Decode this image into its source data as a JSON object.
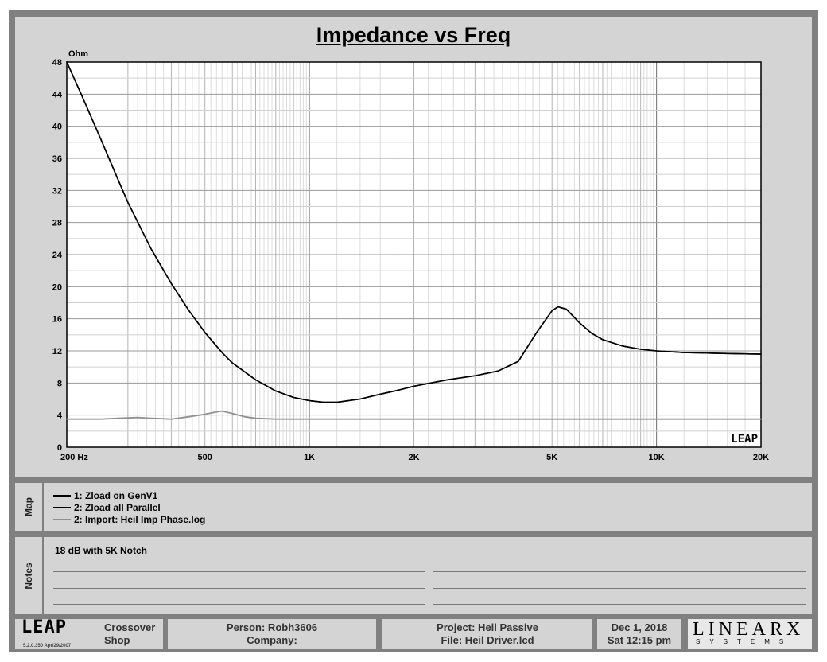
{
  "chart_data": {
    "type": "line",
    "title": "Impedance vs Freq",
    "ylabel": "Ohm",
    "xlabel": "",
    "x_scale": "log",
    "xlim": [
      200,
      20000
    ],
    "ylim": [
      0,
      48
    ],
    "yticks": [
      0,
      4,
      8,
      12,
      16,
      20,
      24,
      28,
      32,
      36,
      40,
      44,
      48
    ],
    "xtick_labels": [
      {
        "value": 200,
        "label": "200  Hz"
      },
      {
        "value": 500,
        "label": "500"
      },
      {
        "value": 1000,
        "label": "1K"
      },
      {
        "value": 2000,
        "label": "2K"
      },
      {
        "value": 5000,
        "label": "5K"
      },
      {
        "value": 10000,
        "label": "10K"
      },
      {
        "value": 20000,
        "label": "20K"
      }
    ],
    "grid": true,
    "watermark": "LEAP",
    "series": [
      {
        "name": "1: Zload on GenV1",
        "color": "#000000",
        "points": [
          [
            200,
            48.0
          ],
          [
            220,
            44.0
          ],
          [
            250,
            38.5
          ],
          [
            280,
            33.5
          ],
          [
            300,
            30.5
          ],
          [
            350,
            24.7
          ],
          [
            400,
            20.4
          ],
          [
            450,
            17.0
          ],
          [
            500,
            14.3
          ],
          [
            560,
            11.8
          ],
          [
            600,
            10.5
          ],
          [
            700,
            8.4
          ],
          [
            800,
            7.0
          ],
          [
            900,
            6.2
          ],
          [
            1000,
            5.8
          ],
          [
            1100,
            5.6
          ],
          [
            1200,
            5.6
          ],
          [
            1400,
            6.0
          ],
          [
            1600,
            6.6
          ],
          [
            1800,
            7.1
          ],
          [
            2000,
            7.6
          ],
          [
            2500,
            8.4
          ],
          [
            3000,
            8.9
          ],
          [
            3500,
            9.5
          ],
          [
            4000,
            10.7
          ],
          [
            4500,
            14.2
          ],
          [
            5000,
            17.0
          ],
          [
            5200,
            17.5
          ],
          [
            5500,
            17.2
          ],
          [
            6000,
            15.5
          ],
          [
            6500,
            14.2
          ],
          [
            7000,
            13.4
          ],
          [
            8000,
            12.6
          ],
          [
            9000,
            12.2
          ],
          [
            10000,
            12.0
          ],
          [
            12000,
            11.8
          ],
          [
            15000,
            11.7
          ],
          [
            20000,
            11.6
          ]
        ]
      },
      {
        "name": "2: Zload all Parallel",
        "color": "#000000",
        "points": [
          [
            200,
            48.0
          ],
          [
            220,
            44.0
          ],
          [
            250,
            38.5
          ],
          [
            280,
            33.5
          ],
          [
            300,
            30.5
          ],
          [
            350,
            24.7
          ],
          [
            400,
            20.4
          ],
          [
            450,
            17.0
          ],
          [
            500,
            14.3
          ],
          [
            560,
            11.8
          ],
          [
            600,
            10.5
          ],
          [
            700,
            8.4
          ],
          [
            800,
            7.0
          ],
          [
            900,
            6.2
          ],
          [
            1000,
            5.8
          ],
          [
            1100,
            5.6
          ],
          [
            1200,
            5.6
          ],
          [
            1400,
            6.0
          ],
          [
            1600,
            6.6
          ],
          [
            1800,
            7.1
          ],
          [
            2000,
            7.6
          ],
          [
            2500,
            8.4
          ],
          [
            3000,
            8.9
          ],
          [
            3500,
            9.5
          ],
          [
            4000,
            10.7
          ],
          [
            4500,
            14.2
          ],
          [
            5000,
            17.0
          ],
          [
            5200,
            17.5
          ],
          [
            5500,
            17.2
          ],
          [
            6000,
            15.5
          ],
          [
            6500,
            14.2
          ],
          [
            7000,
            13.4
          ],
          [
            8000,
            12.6
          ],
          [
            9000,
            12.2
          ],
          [
            10000,
            12.0
          ],
          [
            12000,
            11.8
          ],
          [
            15000,
            11.7
          ],
          [
            20000,
            11.6
          ]
        ]
      },
      {
        "name": "2: Import: Heil Imp Phase.log",
        "color": "#909090",
        "points": [
          [
            200,
            3.5
          ],
          [
            250,
            3.5
          ],
          [
            280,
            3.6
          ],
          [
            320,
            3.7
          ],
          [
            350,
            3.6
          ],
          [
            400,
            3.5
          ],
          [
            450,
            3.8
          ],
          [
            500,
            4.1
          ],
          [
            540,
            4.4
          ],
          [
            560,
            4.5
          ],
          [
            600,
            4.2
          ],
          [
            650,
            3.8
          ],
          [
            700,
            3.6
          ],
          [
            800,
            3.5
          ],
          [
            1000,
            3.5
          ],
          [
            2000,
            3.5
          ],
          [
            5000,
            3.5
          ],
          [
            10000,
            3.5
          ],
          [
            20000,
            3.5
          ]
        ]
      }
    ]
  },
  "map": {
    "label": "Map",
    "items": [
      {
        "text": "1: Zload on GenV1",
        "color": "#000000"
      },
      {
        "text": "2: Zload all Parallel",
        "color": "#000000"
      },
      {
        "text": "2: Import: Heil Imp Phase.log",
        "color": "#909090"
      }
    ]
  },
  "notes": {
    "label": "Notes",
    "first_line": "18 dB with 5K Notch"
  },
  "footer": {
    "logo_text": "LEAP",
    "version": "5.2.0.350   Apr/29/2007",
    "module_line1": "Crossover",
    "module_line2": "Shop",
    "person": "Person: Robh3606",
    "company": "Company:",
    "project": "Project: Heil Passive",
    "file": "File: Heil Driver.lcd",
    "date": "Dec  1, 2018",
    "time": "Sat 12:15 pm",
    "brand": "LINEARX",
    "brand_sub": "SYSTEMS"
  }
}
